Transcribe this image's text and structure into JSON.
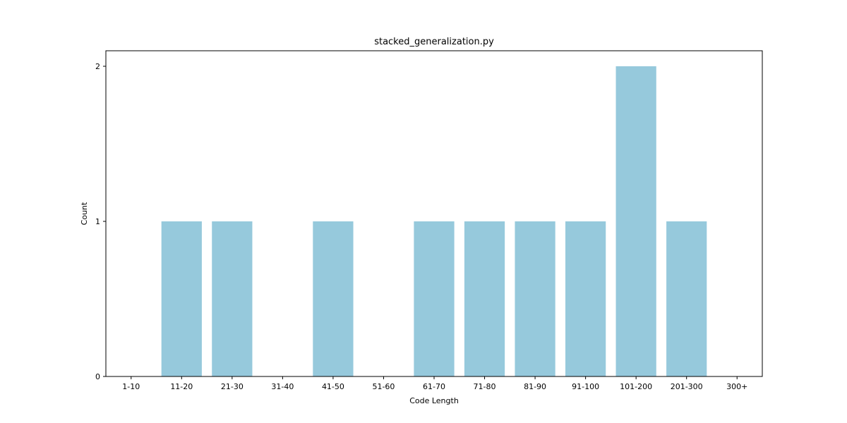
{
  "chart_data": {
    "type": "bar",
    "title": "stacked_generalization.py",
    "xlabel": "Code Length",
    "ylabel": "Count",
    "categories": [
      "1-10",
      "11-20",
      "21-30",
      "31-40",
      "41-50",
      "51-60",
      "61-70",
      "71-80",
      "81-90",
      "91-100",
      "101-200",
      "201-300",
      "300+"
    ],
    "values": [
      0,
      1,
      1,
      0,
      1,
      0,
      1,
      1,
      1,
      1,
      2,
      1,
      0
    ],
    "ylim": [
      0,
      2.1
    ],
    "yticks": [
      "0",
      "1",
      "2"
    ],
    "bar_color": "#96c9dc",
    "grid": false,
    "legend": "none"
  }
}
